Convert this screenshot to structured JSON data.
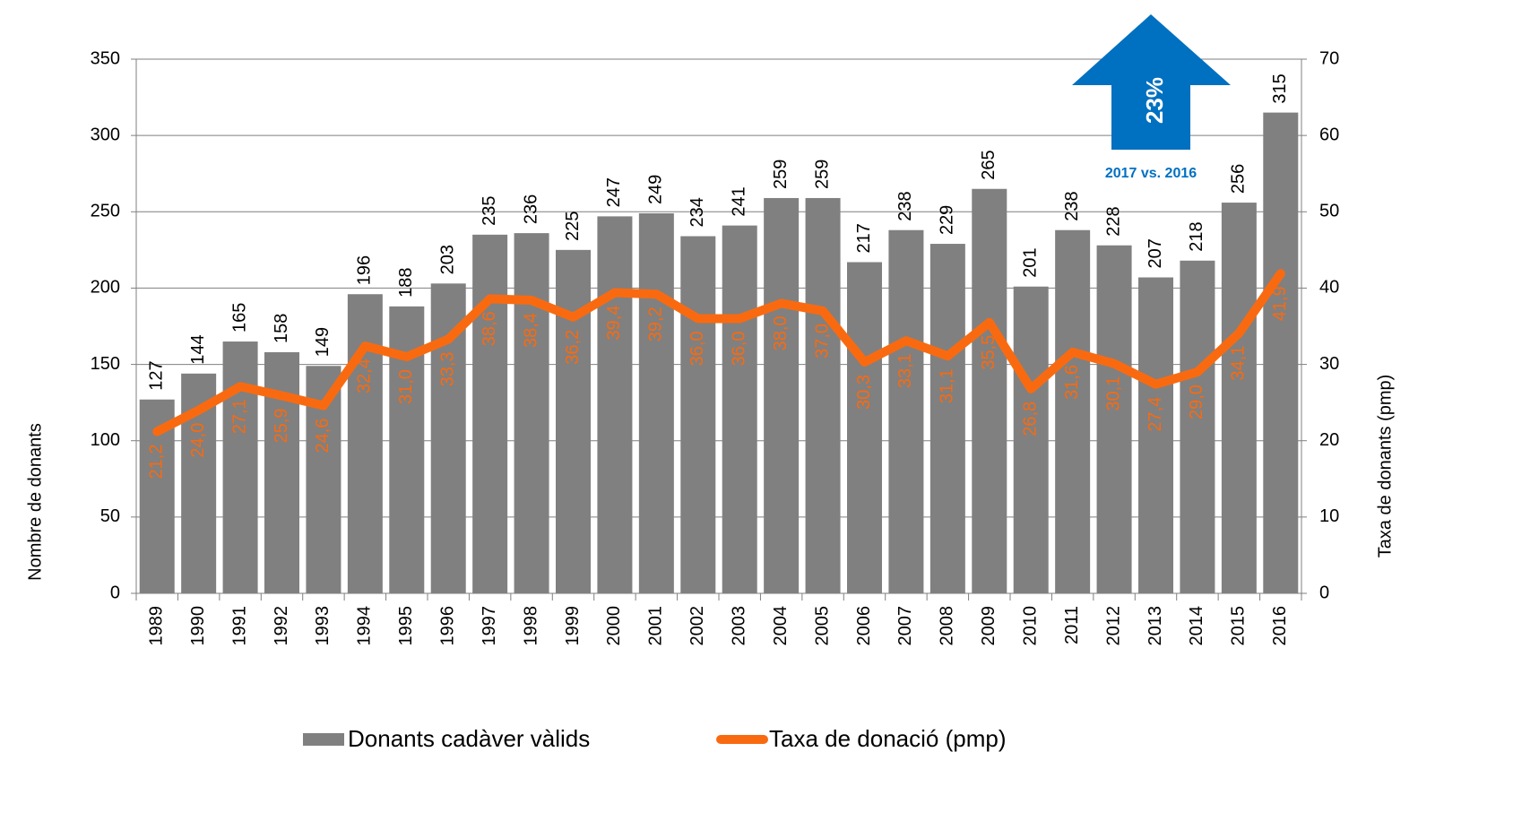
{
  "chart_data": {
    "type": "bar_line",
    "categories": [
      "1989",
      "1990",
      "1991",
      "1992",
      "1993",
      "1994",
      "1995",
      "1996",
      "1997",
      "1998",
      "1999",
      "2000",
      "2001",
      "2002",
      "2003",
      "2004",
      "2005",
      "2006",
      "2007",
      "2008",
      "2009",
      "2010",
      "2011",
      "2012",
      "2013",
      "2014",
      "2015",
      "2016"
    ],
    "series": [
      {
        "name": "Donants cadàver vàlids",
        "type": "bar",
        "color": "#808080",
        "values": [
          127,
          144,
          165,
          158,
          149,
          196,
          188,
          203,
          235,
          236,
          225,
          247,
          249,
          234,
          241,
          259,
          259,
          217,
          238,
          229,
          265,
          201,
          238,
          228,
          207,
          218,
          256,
          315
        ]
      },
      {
        "name": "Taxa de donació (pmp)",
        "type": "line",
        "axis": "y2",
        "color": "#f96a10",
        "values": [
          21.2,
          24.0,
          27.1,
          25.9,
          24.6,
          32.4,
          31.0,
          33.3,
          38.6,
          38.4,
          36.2,
          39.4,
          39.2,
          36.0,
          36.0,
          38.0,
          37.0,
          30.3,
          33.1,
          31.1,
          35.5,
          26.8,
          31.6,
          30.1,
          27.4,
          29.0,
          34.1,
          41.9
        ],
        "value_labels": [
          "21,2",
          "24,0",
          "27,1",
          "25,9",
          "24,6",
          "32,4",
          "31,0",
          "33,3",
          "38,6",
          "38,4",
          "36,2",
          "39,4",
          "39,2",
          "36,0",
          "36,0",
          "38,0",
          "37,0",
          "30,3",
          "33,1",
          "31,1",
          "35,5",
          "26,8",
          "31,6",
          "30,1",
          "27,4",
          "29,0",
          "34,1",
          "41,9"
        ]
      }
    ],
    "ylabel": "Nombre de donants",
    "y2label": "Taxa de donants (pmp)",
    "ylim": [
      0,
      350
    ],
    "yticks": [
      0,
      50,
      100,
      150,
      200,
      250,
      300,
      350
    ],
    "y2lim": [
      0,
      70
    ],
    "y2ticks": [
      0,
      10,
      20,
      30,
      40,
      50,
      60,
      70
    ],
    "grid": true,
    "annotations": [
      {
        "text": "23%"
      },
      {
        "text": "2017 vs. 2016"
      }
    ],
    "annotation_color": "#0070c0",
    "legend": "bottom"
  }
}
